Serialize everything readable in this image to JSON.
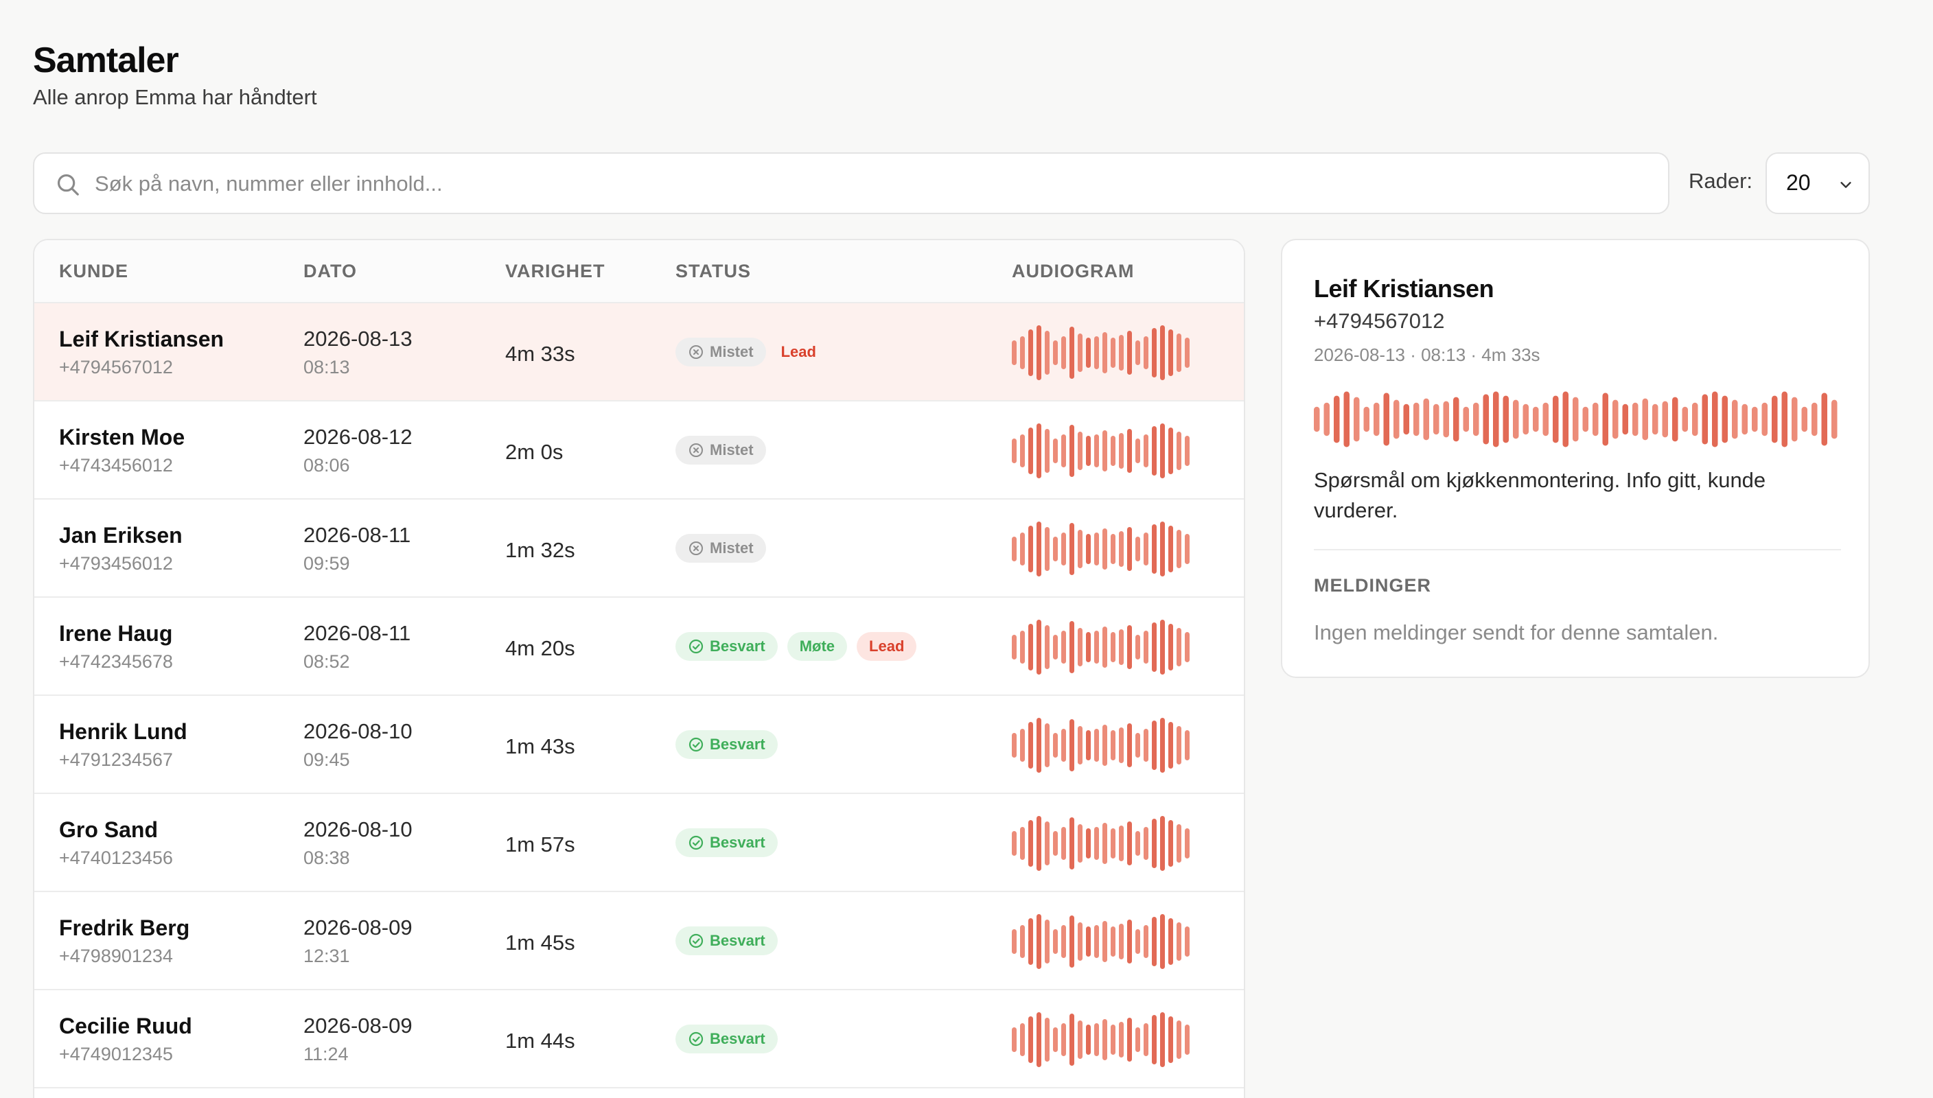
{
  "header": {
    "title": "Samtaler",
    "subtitle": "Alle anrop Emma har håndtert"
  },
  "search": {
    "placeholder": "Søk på navn, nummer eller innhold...",
    "value": ""
  },
  "rows_control": {
    "label": "Rader:",
    "value": "20"
  },
  "table": {
    "columns": [
      "KUNDE",
      "DATO",
      "VARIGHET",
      "STATUS",
      "AUDIOGRAM"
    ],
    "rows": [
      {
        "name": "Leif Kristiansen",
        "phone": "+4794567012",
        "date": "2026-08-13",
        "time": "08:13",
        "duration": "4m 33s",
        "status": [
          {
            "label": "Mistet",
            "kind": "missed"
          },
          {
            "label": "Lead",
            "kind": "lead-plain"
          }
        ],
        "selected": true
      },
      {
        "name": "Kirsten Moe",
        "phone": "+4743456012",
        "date": "2026-08-12",
        "time": "08:06",
        "duration": "2m 0s",
        "status": [
          {
            "label": "Mistet",
            "kind": "missed"
          }
        ]
      },
      {
        "name": "Jan Eriksen",
        "phone": "+4793456012",
        "date": "2026-08-11",
        "time": "09:59",
        "duration": "1m 32s",
        "status": [
          {
            "label": "Mistet",
            "kind": "missed"
          }
        ]
      },
      {
        "name": "Irene Haug",
        "phone": "+4742345678",
        "date": "2026-08-11",
        "time": "08:52",
        "duration": "4m 20s",
        "status": [
          {
            "label": "Besvart",
            "kind": "answered"
          },
          {
            "label": "Møte",
            "kind": "meeting"
          },
          {
            "label": "Lead",
            "kind": "lead"
          }
        ]
      },
      {
        "name": "Henrik Lund",
        "phone": "+4791234567",
        "date": "2026-08-10",
        "time": "09:45",
        "duration": "1m 43s",
        "status": [
          {
            "label": "Besvart",
            "kind": "answered"
          }
        ]
      },
      {
        "name": "Gro Sand",
        "phone": "+4740123456",
        "date": "2026-08-10",
        "time": "08:38",
        "duration": "1m 57s",
        "status": [
          {
            "label": "Besvart",
            "kind": "answered"
          }
        ]
      },
      {
        "name": "Fredrik Berg",
        "phone": "+4798901234",
        "date": "2026-08-09",
        "time": "12:31",
        "duration": "1m 45s",
        "status": [
          {
            "label": "Besvart",
            "kind": "answered"
          }
        ]
      },
      {
        "name": "Cecilie Ruud",
        "phone": "+4749012345",
        "date": "2026-08-09",
        "time": "11:24",
        "duration": "1m 44s",
        "status": [
          {
            "label": "Besvart",
            "kind": "answered"
          }
        ]
      }
    ]
  },
  "detail": {
    "name": "Leif Kristiansen",
    "phone": "+4794567012",
    "meta": "2026-08-13 · 08:13 · 4m 33s",
    "summary": "Spørsmål om kjøkkenmontering. Info gitt, kunde vurderer.",
    "messages_heading": "MELDINGER",
    "messages_empty": "Ingen meldinger sendt for denne samtalen."
  },
  "colors": {
    "accent": "#e26a55",
    "accent_light": "#ec8c79",
    "missed_bg": "#eeeeee",
    "answered_bg": "#e7f6ea",
    "lead_bg": "#fde5e1",
    "selected_row_bg": "#fdf1ee"
  }
}
